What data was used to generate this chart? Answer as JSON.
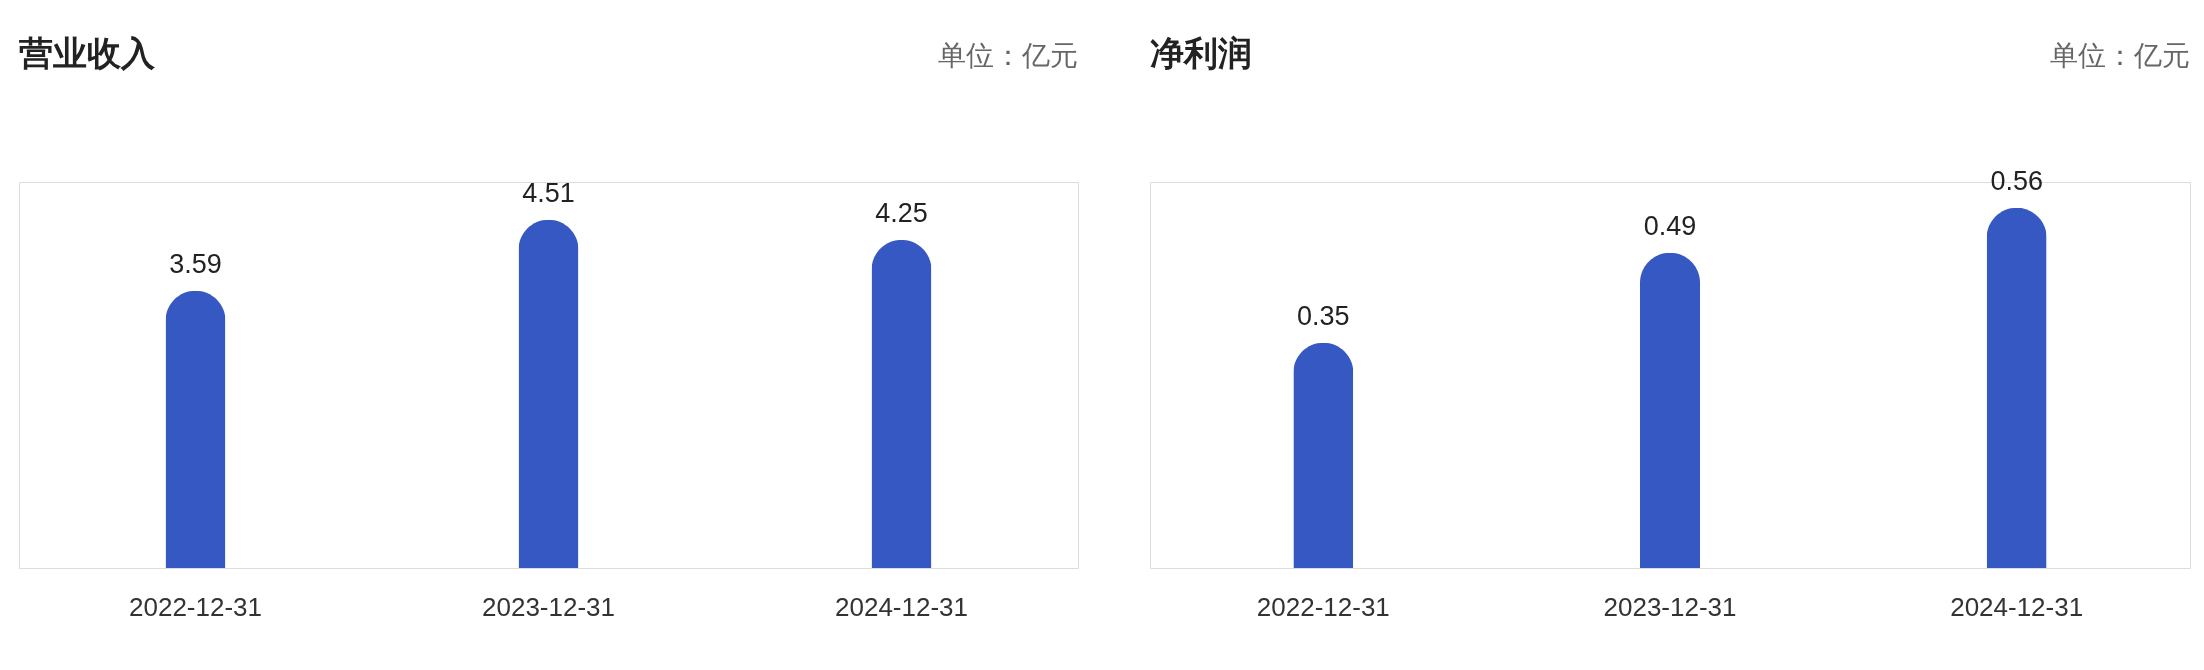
{
  "chart_data": [
    {
      "type": "bar",
      "title": "营业收入",
      "annotations": [
        "单位：亿元"
      ],
      "categories": [
        "2022-12-31",
        "2023-12-31",
        "2024-12-31"
      ],
      "values": [
        3.59,
        4.51,
        4.25
      ],
      "color": "#3658c3",
      "data_labels": true
    },
    {
      "type": "bar",
      "title": "净利润",
      "annotations": [
        "单位：亿元"
      ],
      "categories": [
        "2022-12-31",
        "2023-12-31",
        "2024-12-31"
      ],
      "values": [
        0.35,
        0.49,
        0.56
      ],
      "color": "#3658c3",
      "data_labels": true
    }
  ]
}
